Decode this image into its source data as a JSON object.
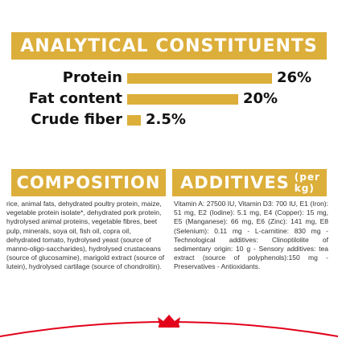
{
  "analytics": {
    "title": "ANALYTICAL CONSTITUENTS",
    "nutrients": [
      {
        "label": "Protein",
        "value": "26%",
        "percent": 26
      },
      {
        "label": "Fat content",
        "value": "20%",
        "percent": 20
      },
      {
        "label": "Crude fiber",
        "value": "2.5%",
        "percent": 2.5
      }
    ]
  },
  "composition": {
    "title": "COMPOSITION",
    "text": "rice, animal fats, dehydrated poultry protein, maize, vegetable protein isolate*, dehydrated pork protein, hydrolysed animal proteins, vegetable fibres, beet pulp, minerals, soya oil, fish oil, copra oil, dehydrated tomato, hydrolysed yeast (source of manno-oligo-saccharides), hydrolysed crustaceans (source of glucosamine), marigold extract (source of lutein), hydrolysed cartilage (source of chondroitin)."
  },
  "additives": {
    "title": "ADDITIVES",
    "unit": "(per kg)",
    "text": "Vitamin A: 27500 IU, Vitamin D3: 700 IU, E1 (Iron): 51 mg, E2 (Iodine): 5.1 mg, E4 (Copper): 15 mg, E5 (Manganese): 66 mg, E6 (Zinc): 141 mg, E8 (Selenium): 0.11 mg - L-carnitine: 830 mg - Technological additives: Clinoptilolite of sedimentary origin: 10 g - Sensory additives: tea extract (source of polyphenols):150 mg - Preservatives - Antioxidants."
  },
  "colors": {
    "accent": "#dcae3a",
    "brand_red": "#e2001a"
  },
  "footer": {
    "logo_icon": "royal-canin-crown-icon"
  }
}
